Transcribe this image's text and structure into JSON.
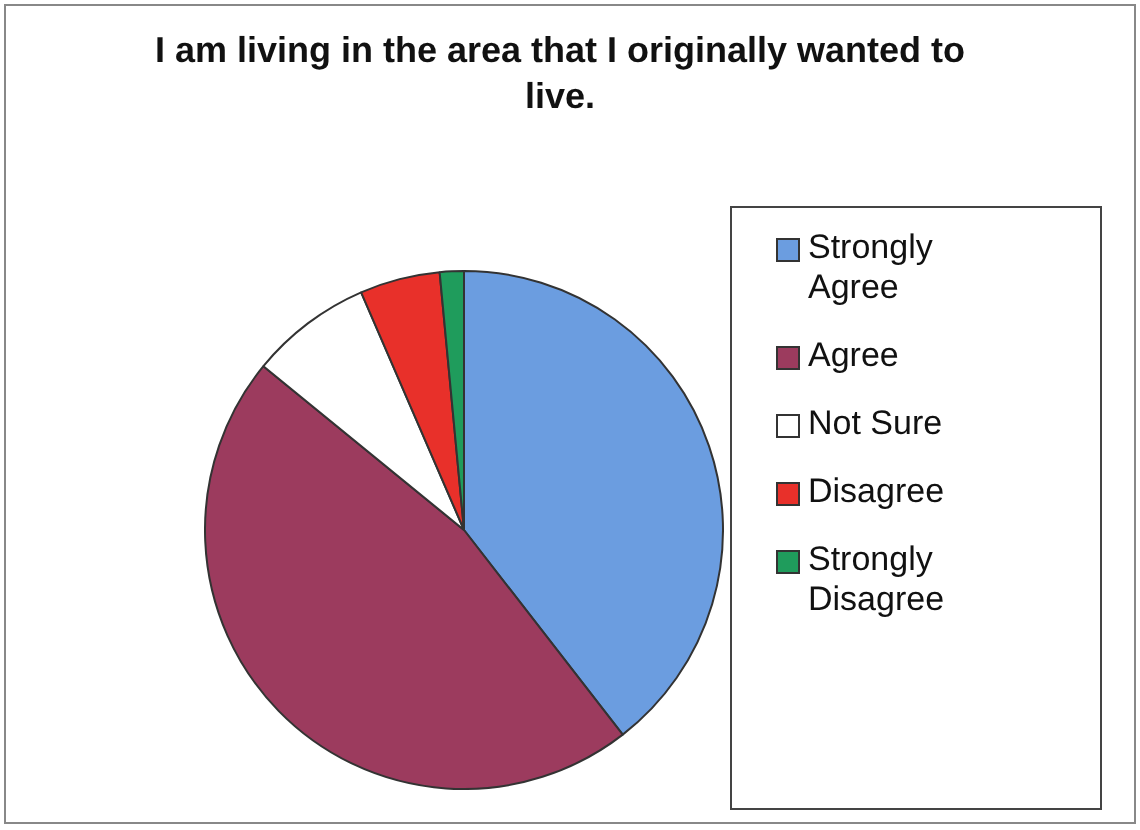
{
  "chart_data": {
    "type": "pie",
    "title": "I am living in the area that I originally wanted to live.",
    "categories": [
      "Strongly Agree",
      "Agree",
      "Not Sure",
      "Disagree",
      "Strongly Disagree"
    ],
    "values": [
      39.5,
      46.4,
      7.6,
      5,
      1.5
    ],
    "colors": [
      "#6b9de0",
      "#9c3b5e",
      "#ffffff",
      "#e8302a",
      "#1f9c5c"
    ],
    "legend": "right"
  }
}
